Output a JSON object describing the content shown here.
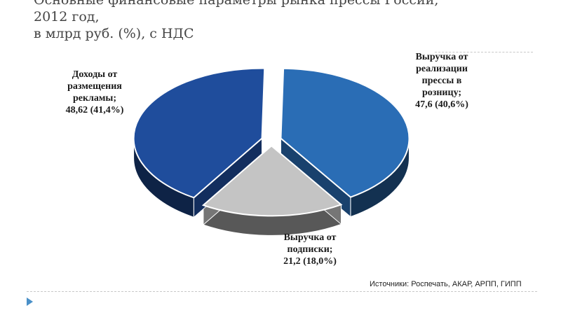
{
  "slide": {
    "title_lines": [
      "Основные финансовые параметры рынка прессы России,",
      "2012 год,",
      "в млрд руб. (%), с НДС"
    ],
    "source": "Источники: Роспечать, АКАР, АРПП, ГИПП"
  },
  "chart_data": {
    "type": "pie",
    "style": "3d-exploded",
    "unit": "млрд руб.",
    "slices": [
      {
        "label_lines": [
          "Выручка от",
          "реализации",
          "прессы в",
          "розницу;",
          "47,6 (40,6%)"
        ],
        "value": 47.6,
        "percent": 40.6,
        "color": "#2a6db5"
      },
      {
        "label_lines": [
          "Выручка от",
          "подписки;",
          "21,2 (18,0%)"
        ],
        "value": 21.2,
        "percent": 18.0,
        "color": "#c4c4c4"
      },
      {
        "label_lines": [
          "Доходы от",
          "размещения",
          "рекламы;",
          "48,62 (41,4%)"
        ],
        "value": 48.62,
        "percent": 41.4,
        "color": "#1f4d9c"
      }
    ]
  }
}
